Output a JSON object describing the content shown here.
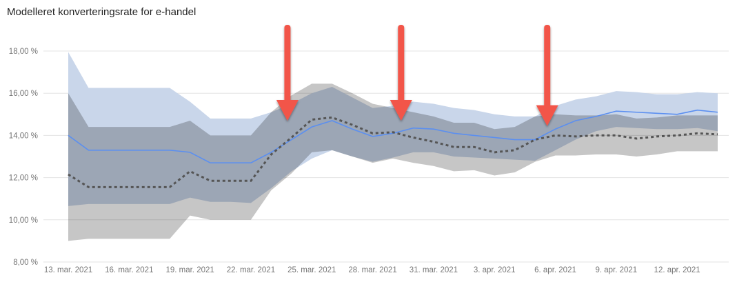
{
  "chart_data": {
    "type": "area",
    "title": "Modelleret konverteringsrate for e-handel",
    "xlabel": "",
    "ylabel": "",
    "ylim": [
      8,
      18
    ],
    "yticks": [
      "8,00 %",
      "10,00 %",
      "12,00 %",
      "14,00 %",
      "16,00 %",
      "18,00 %"
    ],
    "ytick_values": [
      8,
      10,
      12,
      14,
      16,
      18
    ],
    "grid": true,
    "x_count": 33,
    "xtick_labels": [
      {
        "index": 0,
        "label": "13. mar. 2021"
      },
      {
        "index": 3,
        "label": "16. mar. 2021"
      },
      {
        "index": 6,
        "label": "19. mar. 2021"
      },
      {
        "index": 9,
        "label": "22. mar. 2021"
      },
      {
        "index": 12,
        "label": "25. mar. 2021"
      },
      {
        "index": 15,
        "label": "28. mar. 2021"
      },
      {
        "index": 18,
        "label": "31. mar. 2021"
      },
      {
        "index": 21,
        "label": "3. apr. 2021"
      },
      {
        "index": 24,
        "label": "6. apr. 2021"
      },
      {
        "index": 27,
        "label": "9. apr. 2021"
      },
      {
        "index": 30,
        "label": "12. apr. 2021"
      }
    ],
    "series": [
      {
        "name": "blue-band",
        "kind": "band",
        "color": "#c9d6ea",
        "upper": [
          17.95,
          16.25,
          16.25,
          16.25,
          16.25,
          16.25,
          15.6,
          14.8,
          14.8,
          14.8,
          15.1,
          15.5,
          16.0,
          16.3,
          15.8,
          15.3,
          15.4,
          15.6,
          15.5,
          15.3,
          15.2,
          15.0,
          14.9,
          14.9,
          15.4,
          15.7,
          15.85,
          16.1,
          16.05,
          15.95,
          15.95,
          16.05,
          16.0
        ],
        "lower": [
          10.65,
          10.75,
          10.75,
          10.75,
          10.75,
          10.75,
          11.05,
          10.85,
          10.85,
          10.8,
          11.5,
          12.3,
          12.9,
          13.3,
          13.0,
          12.75,
          12.95,
          13.2,
          13.2,
          13.0,
          12.95,
          12.9,
          12.85,
          12.8,
          13.3,
          13.8,
          14.2,
          14.4,
          14.35,
          14.3,
          14.3,
          14.35,
          14.2
        ]
      },
      {
        "name": "grey-band",
        "kind": "band",
        "color": "#c6c6c6",
        "upper": [
          16.0,
          14.4,
          14.4,
          14.4,
          14.4,
          14.4,
          14.7,
          14.0,
          14.0,
          14.0,
          15.1,
          15.9,
          16.45,
          16.45,
          16.0,
          15.5,
          15.3,
          15.1,
          14.9,
          14.6,
          14.6,
          14.3,
          14.4,
          14.9,
          15.0,
          14.95,
          14.95,
          15.0,
          14.8,
          14.85,
          14.95,
          14.95,
          14.95
        ],
        "lower": [
          9.0,
          9.1,
          9.1,
          9.1,
          9.1,
          9.1,
          10.2,
          10.0,
          10.0,
          10.0,
          11.4,
          12.2,
          13.2,
          13.3,
          13.0,
          12.7,
          12.9,
          12.7,
          12.55,
          12.3,
          12.35,
          12.1,
          12.25,
          12.75,
          13.05,
          13.05,
          13.1,
          13.1,
          13.0,
          13.1,
          13.25,
          13.25,
          13.25
        ]
      },
      {
        "name": "blue-line",
        "kind": "line",
        "color": "#5b8ff0",
        "values": [
          14.0,
          13.3,
          13.3,
          13.3,
          13.3,
          13.3,
          13.2,
          12.7,
          12.7,
          12.7,
          13.2,
          13.8,
          14.4,
          14.7,
          14.3,
          13.95,
          14.1,
          14.35,
          14.3,
          14.1,
          14.0,
          13.9,
          13.8,
          13.8,
          14.3,
          14.7,
          14.9,
          15.15,
          15.1,
          15.05,
          15.0,
          15.2,
          15.1
        ]
      },
      {
        "name": "dotted-line",
        "kind": "dashed-line",
        "color": "#555555",
        "values": [
          12.15,
          11.55,
          11.55,
          11.55,
          11.55,
          11.55,
          12.3,
          11.85,
          11.85,
          11.85,
          13.1,
          13.9,
          14.75,
          14.85,
          14.5,
          14.1,
          14.15,
          13.9,
          13.7,
          13.45,
          13.45,
          13.2,
          13.3,
          13.8,
          14.0,
          13.95,
          14.0,
          14.0,
          13.85,
          13.95,
          14.0,
          14.1,
          14.05
        ]
      }
    ],
    "annotations": [
      {
        "type": "arrow",
        "color": "#f25548",
        "index": 10.8,
        "tip_value": 14.7
      },
      {
        "type": "arrow",
        "color": "#f25548",
        "index": 16.4,
        "tip_value": 14.7
      },
      {
        "type": "arrow",
        "color": "#f25548",
        "index": 23.6,
        "tip_value": 14.45
      }
    ]
  }
}
